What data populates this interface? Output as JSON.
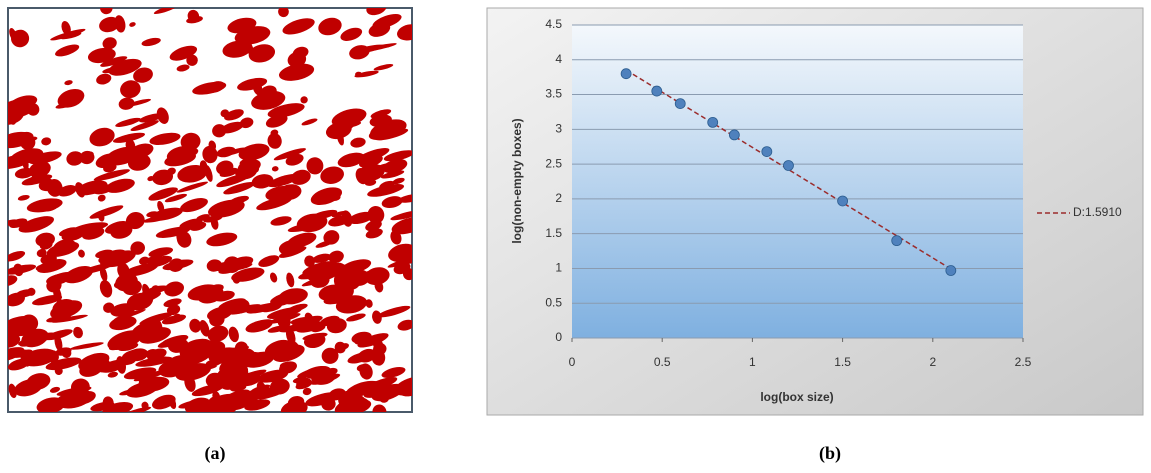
{
  "panel_labels": [
    "(a)",
    "(b)"
  ],
  "chart_data": {
    "type": "scatter",
    "x_label": "log(box size)",
    "y_label": "log(non-empty boxes)",
    "x": [
      0.3,
      0.47,
      0.6,
      0.78,
      0.9,
      1.08,
      1.2,
      1.5,
      1.8,
      2.1
    ],
    "series": [
      {
        "name": "D:1.5910",
        "color": "#4f81bd",
        "values": [
          3.8,
          3.55,
          3.37,
          3.1,
          2.92,
          2.68,
          2.48,
          1.97,
          1.4,
          0.97
        ]
      }
    ],
    "trendline": true,
    "trendline_color": "#9b2c2c",
    "xlim": [
      0,
      2.5
    ],
    "xticks": [
      0,
      0.5,
      1,
      1.5,
      2,
      2.5
    ],
    "ylim": [
      0,
      4.5
    ],
    "yticks": [
      0,
      0.5,
      1,
      1.5,
      2,
      2.5,
      3,
      3.5,
      4,
      4.5
    ],
    "grid": true,
    "legend": "right"
  }
}
